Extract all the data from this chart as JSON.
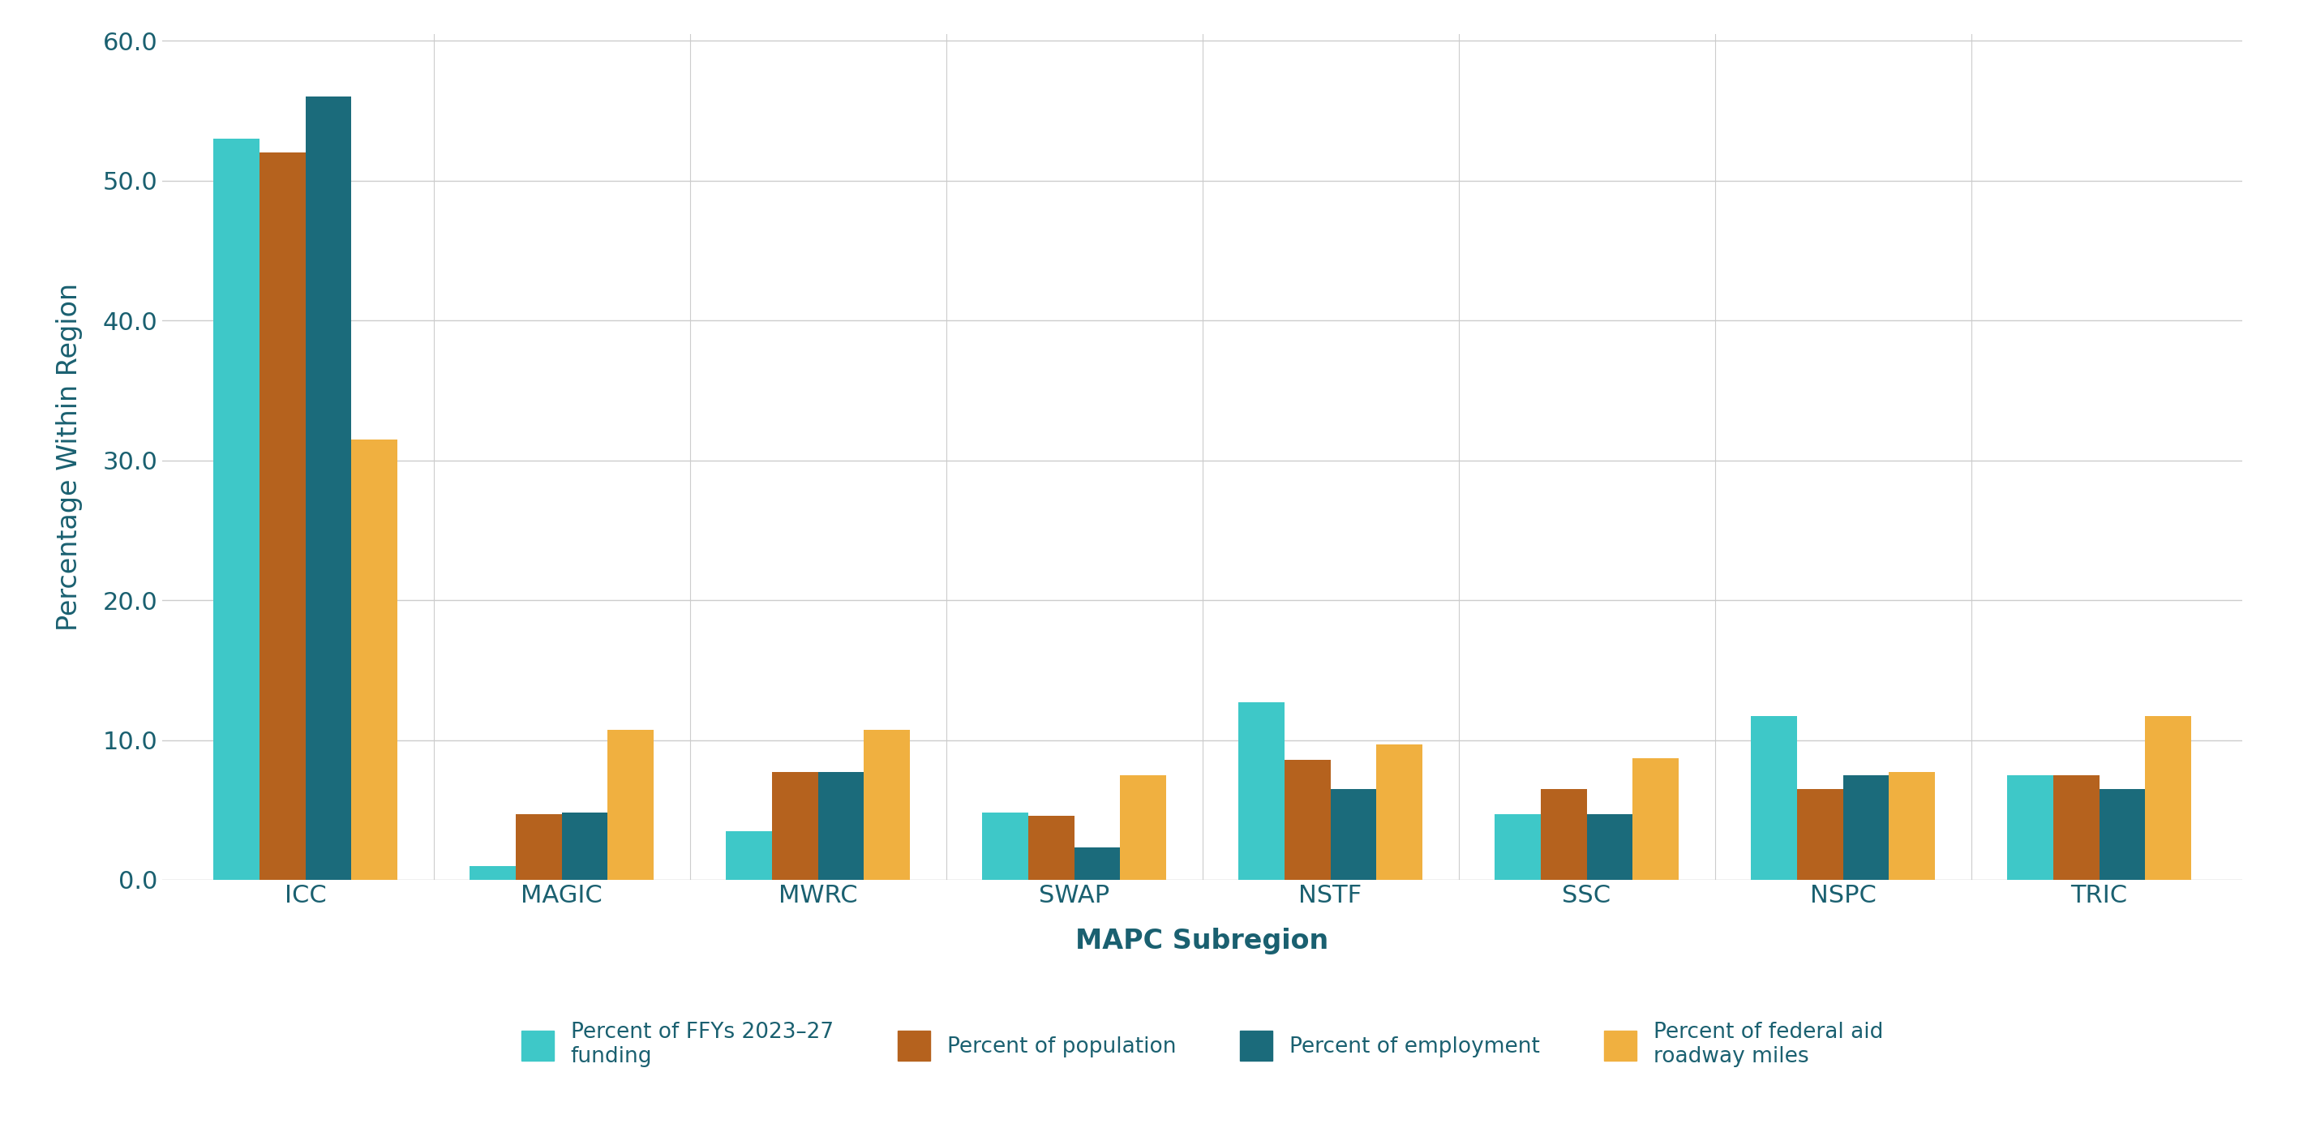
{
  "subregions": [
    "ICC",
    "MAGIC",
    "MWRC",
    "SWAP",
    "NSTF",
    "SSC",
    "NSPC",
    "TRIC"
  ],
  "series": {
    "pct_funding": [
      53.0,
      1.0,
      3.5,
      4.8,
      12.7,
      4.7,
      11.7,
      7.5
    ],
    "pct_population": [
      52.0,
      4.7,
      7.7,
      4.6,
      8.6,
      6.5,
      6.5,
      7.5
    ],
    "pct_employment": [
      56.0,
      4.8,
      7.7,
      2.3,
      6.5,
      4.7,
      7.5,
      6.5
    ],
    "pct_roadway": [
      31.5,
      10.7,
      10.7,
      7.5,
      9.7,
      8.7,
      7.7,
      11.7
    ]
  },
  "colors": {
    "pct_funding": "#3EC8C8",
    "pct_population": "#B5621E",
    "pct_employment": "#1B6B7B",
    "pct_roadway": "#F0B040"
  },
  "legend_labels": {
    "pct_funding": "Percent of FFYs 2023–27\nfunding",
    "pct_population": "Percent of population",
    "pct_employment": "Percent of employment",
    "pct_roadway": "Percent of federal aid\nroadway miles"
  },
  "ylabel": "Percentage Within Region",
  "xlabel": "MAPC Subregion",
  "ylim": [
    0,
    60
  ],
  "yticks": [
    0.0,
    10.0,
    20.0,
    30.0,
    40.0,
    50.0,
    60.0
  ],
  "background_color": "#FFFFFF",
  "grid_color": "#CCCCCC",
  "tick_color": "#1A6070",
  "label_color": "#1A6070"
}
